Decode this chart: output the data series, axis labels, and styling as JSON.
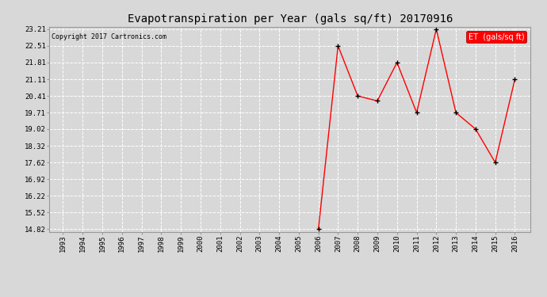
{
  "title": "Evapotranspiration per Year (gals sq/ft) 20170916",
  "copyright": "Copyright 2017 Cartronics.com",
  "legend_label": "ET  (gals/sq ft)",
  "years": [
    1993,
    1994,
    1995,
    1996,
    1997,
    1998,
    1999,
    2000,
    2001,
    2002,
    2003,
    2004,
    2005,
    2006,
    2007,
    2008,
    2009,
    2010,
    2011,
    2012,
    2013,
    2014,
    2015,
    2016
  ],
  "values": [
    null,
    null,
    null,
    null,
    null,
    null,
    null,
    null,
    null,
    null,
    null,
    null,
    null,
    14.82,
    22.51,
    20.41,
    20.2,
    21.81,
    19.71,
    23.21,
    19.71,
    19.02,
    17.62,
    21.11
  ],
  "yticks": [
    14.82,
    15.52,
    16.22,
    16.92,
    17.62,
    18.32,
    19.02,
    19.71,
    20.41,
    21.11,
    21.81,
    22.51,
    23.21
  ],
  "line_color": "#ff0000",
  "marker_color": "#000000",
  "bg_color": "#d8d8d8",
  "plot_bg_color": "#d8d8d8",
  "grid_color": "#ffffff",
  "title_fontsize": 10,
  "copyright_fontsize": 6,
  "tick_fontsize": 6.5,
  "legend_fontsize": 7,
  "ylim_min": 14.82,
  "ylim_max": 23.21,
  "xlim_min": 1992.3,
  "xlim_max": 2016.8
}
